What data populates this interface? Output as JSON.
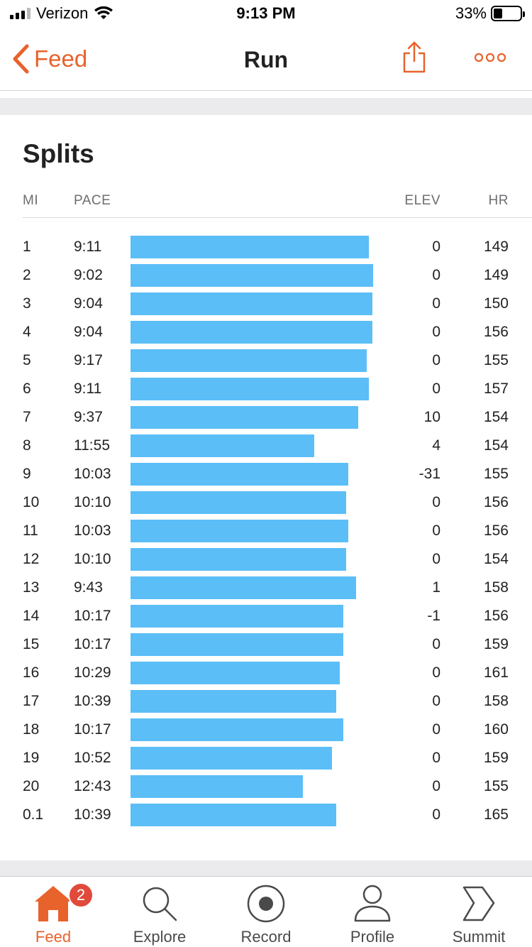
{
  "status_bar": {
    "carrier": "Verizon",
    "time": "9:13 PM",
    "battery": "33%",
    "battery_level": 0.33
  },
  "nav": {
    "back_label": "Feed",
    "title": "Run"
  },
  "splits": {
    "title": "Splits",
    "headers": {
      "mi": "MI",
      "pace": "PACE",
      "elev": "ELEV",
      "hr": "HR"
    },
    "rows": [
      {
        "mi": "1",
        "pace": "9:11",
        "elev": "0",
        "hr": "149"
      },
      {
        "mi": "2",
        "pace": "9:02",
        "elev": "0",
        "hr": "149"
      },
      {
        "mi": "3",
        "pace": "9:04",
        "elev": "0",
        "hr": "150"
      },
      {
        "mi": "4",
        "pace": "9:04",
        "elev": "0",
        "hr": "156"
      },
      {
        "mi": "5",
        "pace": "9:17",
        "elev": "0",
        "hr": "155"
      },
      {
        "mi": "6",
        "pace": "9:11",
        "elev": "0",
        "hr": "157"
      },
      {
        "mi": "7",
        "pace": "9:37",
        "elev": "10",
        "hr": "154"
      },
      {
        "mi": "8",
        "pace": "11:55",
        "elev": "4",
        "hr": "154"
      },
      {
        "mi": "9",
        "pace": "10:03",
        "elev": "-31",
        "hr": "155"
      },
      {
        "mi": "10",
        "pace": "10:10",
        "elev": "0",
        "hr": "156"
      },
      {
        "mi": "11",
        "pace": "10:03",
        "elev": "0",
        "hr": "156"
      },
      {
        "mi": "12",
        "pace": "10:10",
        "elev": "0",
        "hr": "154"
      },
      {
        "mi": "13",
        "pace": "9:43",
        "elev": "1",
        "hr": "158"
      },
      {
        "mi": "14",
        "pace": "10:17",
        "elev": "-1",
        "hr": "156"
      },
      {
        "mi": "15",
        "pace": "10:17",
        "elev": "0",
        "hr": "159"
      },
      {
        "mi": "16",
        "pace": "10:29",
        "elev": "0",
        "hr": "161"
      },
      {
        "mi": "17",
        "pace": "10:39",
        "elev": "0",
        "hr": "158"
      },
      {
        "mi": "18",
        "pace": "10:17",
        "elev": "0",
        "hr": "160"
      },
      {
        "mi": "19",
        "pace": "10:52",
        "elev": "0",
        "hr": "159"
      },
      {
        "mi": "20",
        "pace": "12:43",
        "elev": "0",
        "hr": "155"
      },
      {
        "mi": "0.1",
        "pace": "10:39",
        "elev": "0",
        "hr": "165"
      }
    ]
  },
  "tabbar": {
    "badge_count": "2",
    "tabs": [
      {
        "label": "Feed",
        "icon": "home-icon",
        "active": true
      },
      {
        "label": "Explore",
        "icon": "search-icon",
        "active": false
      },
      {
        "label": "Record",
        "icon": "record-icon",
        "active": false
      },
      {
        "label": "Profile",
        "icon": "profile-icon",
        "active": false
      },
      {
        "label": "Summit",
        "icon": "summit-icon",
        "active": false
      }
    ]
  },
  "colors": {
    "accent": "#e8622b",
    "bar": "#5bbef7",
    "badge": "#e04a3a",
    "band": "#ebebee"
  }
}
